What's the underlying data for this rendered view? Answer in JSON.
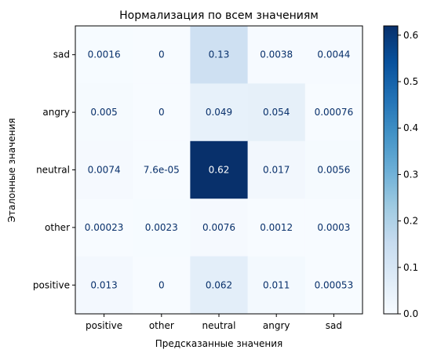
{
  "chart_data": {
    "type": "heatmap",
    "title": "Нормализация по всем значениям",
    "xlabel": "Предсказанные значения",
    "ylabel": "Эталонные значения",
    "x_categories": [
      "positive",
      "other",
      "neutral",
      "angry",
      "sad"
    ],
    "y_categories": [
      "sad",
      "angry",
      "neutral",
      "other",
      "positive"
    ],
    "values": [
      [
        0.0016,
        0,
        0.13,
        0.0038,
        0.0044
      ],
      [
        0.005,
        0,
        0.049,
        0.054,
        0.00076
      ],
      [
        0.0074,
        7.6e-05,
        0.62,
        0.017,
        0.0056
      ],
      [
        0.00023,
        0.0023,
        0.0076,
        0.0012,
        0.0003
      ],
      [
        0.013,
        0,
        0.062,
        0.011,
        0.00053
      ]
    ],
    "cell_labels": [
      [
        "0.0016",
        "0",
        "0.13",
        "0.0038",
        "0.0044"
      ],
      [
        "0.005",
        "0",
        "0.049",
        "0.054",
        "0.00076"
      ],
      [
        "0.0074",
        "7.6e-05",
        "0.62",
        "0.017",
        "0.0056"
      ],
      [
        "0.00023",
        "0.0023",
        "0.0076",
        "0.0012",
        "0.0003"
      ],
      [
        "0.013",
        "0",
        "0.062",
        "0.011",
        "0.00053"
      ]
    ],
    "colormap": "Blues",
    "colorbar": {
      "range": [
        0,
        0.62
      ],
      "ticks": [
        0.0,
        0.1,
        0.2,
        0.3,
        0.4,
        0.5,
        0.6
      ],
      "tick_labels": [
        "0.0",
        "0.1",
        "0.2",
        "0.3",
        "0.4",
        "0.5",
        "0.6"
      ]
    }
  }
}
